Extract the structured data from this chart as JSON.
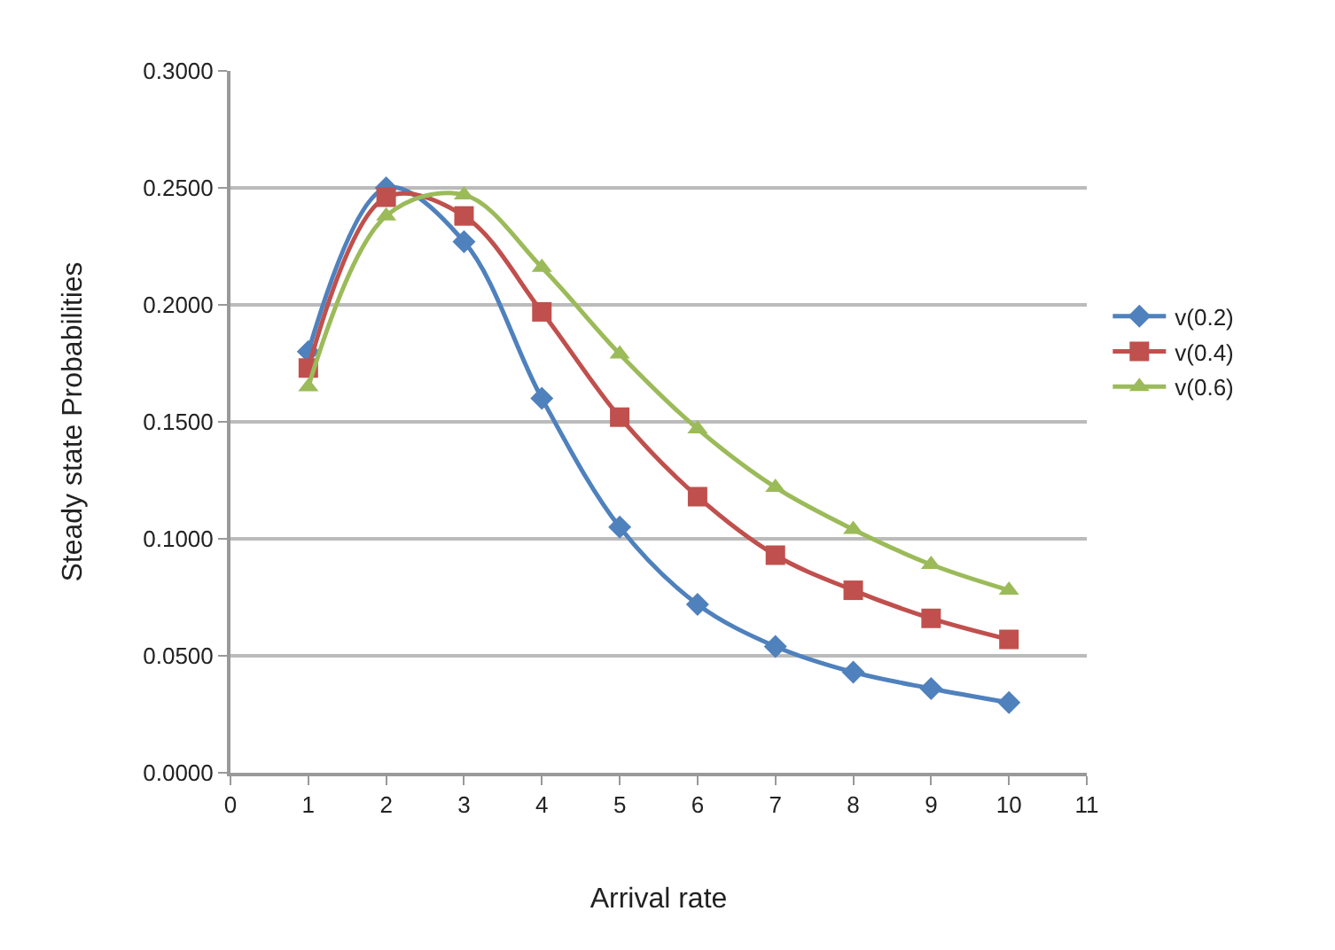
{
  "chart_data": {
    "type": "line",
    "xlabel": "Arrival rate",
    "ylabel": "Steady state Probabilities",
    "x": [
      1,
      2,
      3,
      4,
      5,
      6,
      7,
      8,
      9,
      10
    ],
    "series": [
      {
        "name": "v(0.2)",
        "color": "#4f81bd",
        "marker": "diamond",
        "values": [
          0.18,
          0.25,
          0.227,
          0.16,
          0.105,
          0.072,
          0.054,
          0.043,
          0.036,
          0.03
        ]
      },
      {
        "name": "v(0.4)",
        "color": "#c0504d",
        "marker": "square",
        "values": [
          0.173,
          0.246,
          0.238,
          0.197,
          0.152,
          0.118,
          0.093,
          0.078,
          0.066,
          0.057
        ]
      },
      {
        "name": "v(0.6)",
        "color": "#9bbb59",
        "marker": "triangle",
        "values": [
          0.165,
          0.238,
          0.247,
          0.216,
          0.179,
          0.147,
          0.122,
          0.104,
          0.089,
          0.078
        ]
      }
    ],
    "xlim": [
      0,
      11
    ],
    "xticks": [
      0,
      1,
      2,
      3,
      4,
      5,
      6,
      7,
      8,
      9,
      10,
      11
    ],
    "ylim": [
      0,
      0.3
    ],
    "yticks": [
      {
        "value": 0,
        "label": "0.0000"
      },
      {
        "value": 0.05,
        "label": "0.0500"
      },
      {
        "value": 0.1,
        "label": "0.1000"
      },
      {
        "value": 0.15,
        "label": "0.1500"
      },
      {
        "value": 0.2,
        "label": "0.2000"
      },
      {
        "value": 0.25,
        "label": "0.2500"
      },
      {
        "value": 0.3,
        "label": "0.3000"
      }
    ],
    "grid": "y",
    "legend": "right",
    "line_style": "solid"
  }
}
